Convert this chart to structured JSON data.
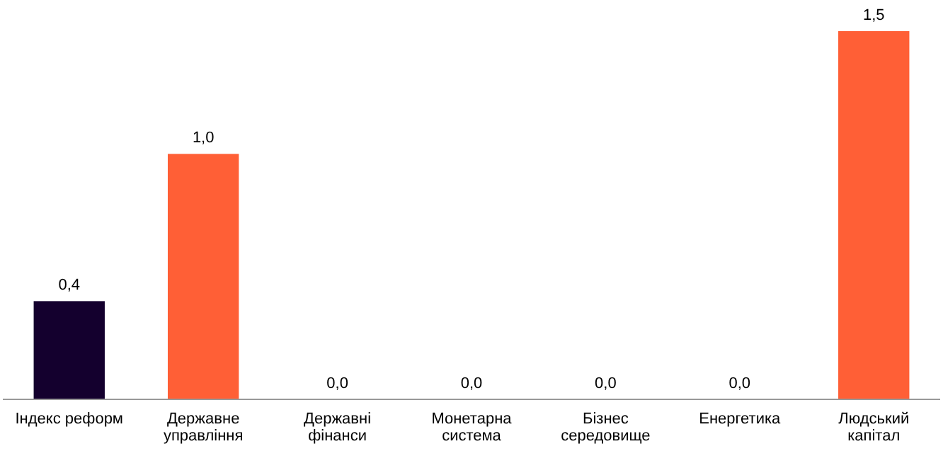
{
  "chart_data": {
    "type": "bar",
    "categories": [
      "Індекс реформ",
      "Державне управління",
      "Державні фінанси",
      "Монетарна система",
      "Бізнес середовище",
      "Енергетика",
      "Людський капітал"
    ],
    "values": [
      0.4,
      1.0,
      0.0,
      0.0,
      0.0,
      0.0,
      1.5
    ],
    "colors": [
      "#14002e",
      "#ff5f36",
      "#ff5f36",
      "#ff5f36",
      "#ff5f36",
      "#ff5f36",
      "#ff5f36"
    ],
    "value_labels": [
      "0,4",
      "1,0",
      "0,0",
      "0,0",
      "0,0",
      "0,0",
      "1,5"
    ]
  }
}
